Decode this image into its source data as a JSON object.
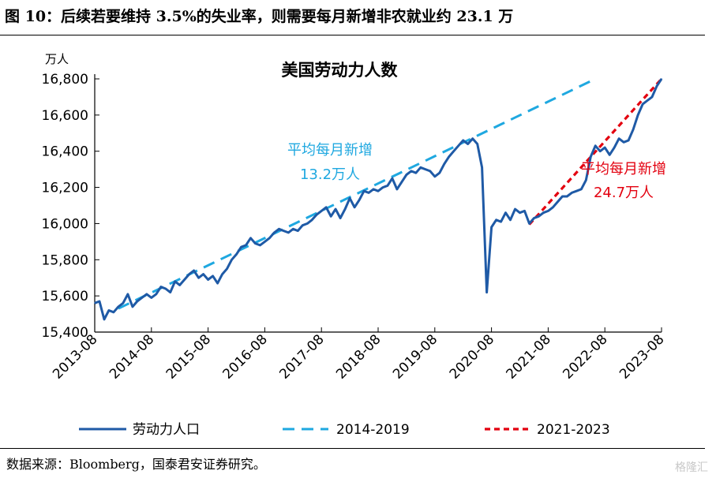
{
  "figure": {
    "title": "图 10：后续若要维持 3.5%的失业率，则需要每月新增非农就业约 23.1 万",
    "source": "数据来源：Bloomberg，国泰君安证券研究。",
    "watermark": "格隆汇"
  },
  "chart_data": {
    "type": "line",
    "title": "美国劳动力人数",
    "unit": "万人",
    "ylim": [
      15400,
      16800
    ],
    "yticks": [
      15400,
      15600,
      15800,
      16000,
      16200,
      16400,
      16600,
      16800
    ],
    "ytick_labels": [
      "15,400",
      "15,600",
      "15,800",
      "16,000",
      "16,200",
      "16,400",
      "16,600",
      "16,800"
    ],
    "xlim": [
      "2013-08",
      "2023-08"
    ],
    "xticks": [
      "2013-08",
      "2014-08",
      "2015-08",
      "2016-08",
      "2017-08",
      "2018-08",
      "2019-08",
      "2020-08",
      "2021-08",
      "2022-08",
      "2023-08"
    ],
    "grid": false,
    "legend_position": "bottom",
    "series": [
      {
        "name": "劳动力人口",
        "color": "#1f5aa6",
        "style": "solid",
        "points": [
          [
            "2013-08",
            15560
          ],
          [
            "2013-09",
            15570
          ],
          [
            "2013-10",
            15470
          ],
          [
            "2013-11",
            15520
          ],
          [
            "2013-12",
            15510
          ],
          [
            "2014-01",
            15540
          ],
          [
            "2014-02",
            15560
          ],
          [
            "2014-03",
            15610
          ],
          [
            "2014-04",
            15540
          ],
          [
            "2014-05",
            15570
          ],
          [
            "2014-06",
            15590
          ],
          [
            "2014-07",
            15610
          ],
          [
            "2014-08",
            15590
          ],
          [
            "2014-09",
            15610
          ],
          [
            "2014-10",
            15650
          ],
          [
            "2014-11",
            15640
          ],
          [
            "2014-12",
            15620
          ],
          [
            "2015-01",
            15680
          ],
          [
            "2015-02",
            15660
          ],
          [
            "2015-03",
            15690
          ],
          [
            "2015-04",
            15720
          ],
          [
            "2015-05",
            15740
          ],
          [
            "2015-06",
            15700
          ],
          [
            "2015-07",
            15720
          ],
          [
            "2015-08",
            15690
          ],
          [
            "2015-09",
            15710
          ],
          [
            "2015-10",
            15670
          ],
          [
            "2015-11",
            15720
          ],
          [
            "2015-12",
            15750
          ],
          [
            "2016-01",
            15800
          ],
          [
            "2016-02",
            15830
          ],
          [
            "2016-03",
            15870
          ],
          [
            "2016-04",
            15880
          ],
          [
            "2016-05",
            15920
          ],
          [
            "2016-06",
            15890
          ],
          [
            "2016-07",
            15880
          ],
          [
            "2016-08",
            15900
          ],
          [
            "2016-09",
            15920
          ],
          [
            "2016-10",
            15950
          ],
          [
            "2016-11",
            15970
          ],
          [
            "2016-12",
            15960
          ],
          [
            "2017-01",
            15950
          ],
          [
            "2017-02",
            15970
          ],
          [
            "2017-03",
            15960
          ],
          [
            "2017-04",
            15990
          ],
          [
            "2017-05",
            16000
          ],
          [
            "2017-06",
            16020
          ],
          [
            "2017-07",
            16050
          ],
          [
            "2017-08",
            16070
          ],
          [
            "2017-09",
            16090
          ],
          [
            "2017-10",
            16040
          ],
          [
            "2017-11",
            16080
          ],
          [
            "2017-12",
            16030
          ],
          [
            "2018-01",
            16080
          ],
          [
            "2018-02",
            16140
          ],
          [
            "2018-03",
            16090
          ],
          [
            "2018-04",
            16130
          ],
          [
            "2018-05",
            16180
          ],
          [
            "2018-06",
            16170
          ],
          [
            "2018-07",
            16190
          ],
          [
            "2018-08",
            16180
          ],
          [
            "2018-09",
            16200
          ],
          [
            "2018-10",
            16210
          ],
          [
            "2018-11",
            16250
          ],
          [
            "2018-12",
            16190
          ],
          [
            "2019-01",
            16230
          ],
          [
            "2019-02",
            16270
          ],
          [
            "2019-03",
            16290
          ],
          [
            "2019-04",
            16280
          ],
          [
            "2019-05",
            16310
          ],
          [
            "2019-06",
            16300
          ],
          [
            "2019-07",
            16290
          ],
          [
            "2019-08",
            16260
          ],
          [
            "2019-09",
            16280
          ],
          [
            "2019-10",
            16330
          ],
          [
            "2019-11",
            16370
          ],
          [
            "2019-12",
            16400
          ],
          [
            "2020-01",
            16430
          ],
          [
            "2020-02",
            16460
          ],
          [
            "2020-03",
            16440
          ],
          [
            "2020-04",
            16470
          ],
          [
            "2020-05",
            16440
          ],
          [
            "2020-06",
            16310
          ],
          [
            "2020-07",
            15620
          ],
          [
            "2020-08",
            15980
          ],
          [
            "2020-09",
            16020
          ],
          [
            "2020-10",
            16010
          ],
          [
            "2020-11",
            16060
          ],
          [
            "2020-12",
            16020
          ],
          [
            "2021-01",
            16080
          ],
          [
            "2021-02",
            16060
          ],
          [
            "2021-03",
            16070
          ],
          [
            "2021-04",
            16000
          ],
          [
            "2021-05",
            16030
          ],
          [
            "2021-06",
            16040
          ],
          [
            "2021-07",
            16060
          ],
          [
            "2021-08",
            16070
          ],
          [
            "2021-09",
            16090
          ],
          [
            "2021-10",
            16120
          ],
          [
            "2021-11",
            16150
          ],
          [
            "2021-12",
            16150
          ],
          [
            "2022-01",
            16170
          ],
          [
            "2022-02",
            16180
          ],
          [
            "2022-03",
            16190
          ],
          [
            "2022-04",
            16240
          ],
          [
            "2022-05",
            16370
          ],
          [
            "2022-06",
            16430
          ],
          [
            "2022-07",
            16400
          ],
          [
            "2022-08",
            16420
          ],
          [
            "2022-09",
            16380
          ],
          [
            "2022-10",
            16420
          ],
          [
            "2022-11",
            16470
          ],
          [
            "2022-12",
            16450
          ],
          [
            "2023-01",
            16460
          ],
          [
            "2023-02",
            16520
          ],
          [
            "2023-03",
            16600
          ],
          [
            "2023-04",
            16660
          ],
          [
            "2023-05",
            16680
          ],
          [
            "2023-06",
            16700
          ],
          [
            "2023-07",
            16760
          ],
          [
            "2023-08",
            16800
          ]
        ]
      },
      {
        "name": "2014-2019",
        "color": "#1fa8e0",
        "style": "dashed",
        "points": [
          [
            "2014-01",
            15530
          ],
          [
            "2022-06",
            16800
          ]
        ]
      },
      {
        "name": "2021-2023",
        "color": "#e3000f",
        "style": "dotted",
        "points": [
          [
            "2021-04",
            15995
          ],
          [
            "2023-08",
            16800
          ]
        ]
      }
    ],
    "annotations": [
      {
        "text": "平均每月新增",
        "color": "#1fa8e0",
        "series": "2014-2019"
      },
      {
        "text": "13.2万人",
        "color": "#1fa8e0",
        "series": "2014-2019"
      },
      {
        "text": "平均每月新增",
        "color": "#e3000f",
        "series": "2021-2023"
      },
      {
        "text": "24.7万人",
        "color": "#e3000f",
        "series": "2021-2023"
      }
    ]
  }
}
